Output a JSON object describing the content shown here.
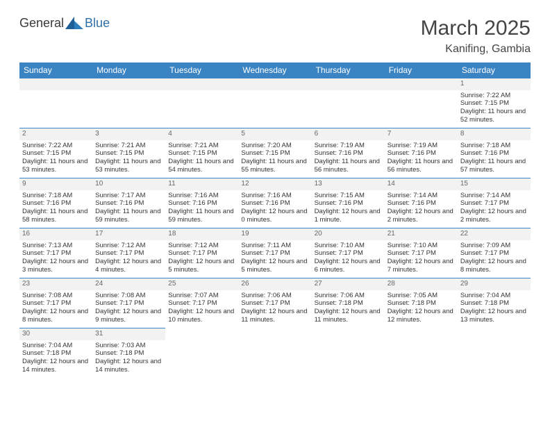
{
  "logo": {
    "general": "General",
    "blue": "Blue"
  },
  "title": "March 2025",
  "location": "Kanifing, Gambia",
  "colors": {
    "header_bg": "#3a84c4",
    "header_text": "#ffffff",
    "daynum_bg": "#f2f2f2",
    "border": "#3a84c4",
    "text": "#333333",
    "logo_blue": "#2f6fa7"
  },
  "weekdays": [
    "Sunday",
    "Monday",
    "Tuesday",
    "Wednesday",
    "Thursday",
    "Friday",
    "Saturday"
  ],
  "weeks": [
    [
      null,
      null,
      null,
      null,
      null,
      null,
      {
        "n": "1",
        "sr": "Sunrise: 7:22 AM",
        "ss": "Sunset: 7:15 PM",
        "dl": "Daylight: 11 hours and 52 minutes."
      }
    ],
    [
      {
        "n": "2",
        "sr": "Sunrise: 7:22 AM",
        "ss": "Sunset: 7:15 PM",
        "dl": "Daylight: 11 hours and 53 minutes."
      },
      {
        "n": "3",
        "sr": "Sunrise: 7:21 AM",
        "ss": "Sunset: 7:15 PM",
        "dl": "Daylight: 11 hours and 53 minutes."
      },
      {
        "n": "4",
        "sr": "Sunrise: 7:21 AM",
        "ss": "Sunset: 7:15 PM",
        "dl": "Daylight: 11 hours and 54 minutes."
      },
      {
        "n": "5",
        "sr": "Sunrise: 7:20 AM",
        "ss": "Sunset: 7:15 PM",
        "dl": "Daylight: 11 hours and 55 minutes."
      },
      {
        "n": "6",
        "sr": "Sunrise: 7:19 AM",
        "ss": "Sunset: 7:16 PM",
        "dl": "Daylight: 11 hours and 56 minutes."
      },
      {
        "n": "7",
        "sr": "Sunrise: 7:19 AM",
        "ss": "Sunset: 7:16 PM",
        "dl": "Daylight: 11 hours and 56 minutes."
      },
      {
        "n": "8",
        "sr": "Sunrise: 7:18 AM",
        "ss": "Sunset: 7:16 PM",
        "dl": "Daylight: 11 hours and 57 minutes."
      }
    ],
    [
      {
        "n": "9",
        "sr": "Sunrise: 7:18 AM",
        "ss": "Sunset: 7:16 PM",
        "dl": "Daylight: 11 hours and 58 minutes."
      },
      {
        "n": "10",
        "sr": "Sunrise: 7:17 AM",
        "ss": "Sunset: 7:16 PM",
        "dl": "Daylight: 11 hours and 59 minutes."
      },
      {
        "n": "11",
        "sr": "Sunrise: 7:16 AM",
        "ss": "Sunset: 7:16 PM",
        "dl": "Daylight: 11 hours and 59 minutes."
      },
      {
        "n": "12",
        "sr": "Sunrise: 7:16 AM",
        "ss": "Sunset: 7:16 PM",
        "dl": "Daylight: 12 hours and 0 minutes."
      },
      {
        "n": "13",
        "sr": "Sunrise: 7:15 AM",
        "ss": "Sunset: 7:16 PM",
        "dl": "Daylight: 12 hours and 1 minute."
      },
      {
        "n": "14",
        "sr": "Sunrise: 7:14 AM",
        "ss": "Sunset: 7:16 PM",
        "dl": "Daylight: 12 hours and 2 minutes."
      },
      {
        "n": "15",
        "sr": "Sunrise: 7:14 AM",
        "ss": "Sunset: 7:17 PM",
        "dl": "Daylight: 12 hours and 2 minutes."
      }
    ],
    [
      {
        "n": "16",
        "sr": "Sunrise: 7:13 AM",
        "ss": "Sunset: 7:17 PM",
        "dl": "Daylight: 12 hours and 3 minutes."
      },
      {
        "n": "17",
        "sr": "Sunrise: 7:12 AM",
        "ss": "Sunset: 7:17 PM",
        "dl": "Daylight: 12 hours and 4 minutes."
      },
      {
        "n": "18",
        "sr": "Sunrise: 7:12 AM",
        "ss": "Sunset: 7:17 PM",
        "dl": "Daylight: 12 hours and 5 minutes."
      },
      {
        "n": "19",
        "sr": "Sunrise: 7:11 AM",
        "ss": "Sunset: 7:17 PM",
        "dl": "Daylight: 12 hours and 5 minutes."
      },
      {
        "n": "20",
        "sr": "Sunrise: 7:10 AM",
        "ss": "Sunset: 7:17 PM",
        "dl": "Daylight: 12 hours and 6 minutes."
      },
      {
        "n": "21",
        "sr": "Sunrise: 7:10 AM",
        "ss": "Sunset: 7:17 PM",
        "dl": "Daylight: 12 hours and 7 minutes."
      },
      {
        "n": "22",
        "sr": "Sunrise: 7:09 AM",
        "ss": "Sunset: 7:17 PM",
        "dl": "Daylight: 12 hours and 8 minutes."
      }
    ],
    [
      {
        "n": "23",
        "sr": "Sunrise: 7:08 AM",
        "ss": "Sunset: 7:17 PM",
        "dl": "Daylight: 12 hours and 8 minutes."
      },
      {
        "n": "24",
        "sr": "Sunrise: 7:08 AM",
        "ss": "Sunset: 7:17 PM",
        "dl": "Daylight: 12 hours and 9 minutes."
      },
      {
        "n": "25",
        "sr": "Sunrise: 7:07 AM",
        "ss": "Sunset: 7:17 PM",
        "dl": "Daylight: 12 hours and 10 minutes."
      },
      {
        "n": "26",
        "sr": "Sunrise: 7:06 AM",
        "ss": "Sunset: 7:17 PM",
        "dl": "Daylight: 12 hours and 11 minutes."
      },
      {
        "n": "27",
        "sr": "Sunrise: 7:06 AM",
        "ss": "Sunset: 7:18 PM",
        "dl": "Daylight: 12 hours and 11 minutes."
      },
      {
        "n": "28",
        "sr": "Sunrise: 7:05 AM",
        "ss": "Sunset: 7:18 PM",
        "dl": "Daylight: 12 hours and 12 minutes."
      },
      {
        "n": "29",
        "sr": "Sunrise: 7:04 AM",
        "ss": "Sunset: 7:18 PM",
        "dl": "Daylight: 12 hours and 13 minutes."
      }
    ],
    [
      {
        "n": "30",
        "sr": "Sunrise: 7:04 AM",
        "ss": "Sunset: 7:18 PM",
        "dl": "Daylight: 12 hours and 14 minutes."
      },
      {
        "n": "31",
        "sr": "Sunrise: 7:03 AM",
        "ss": "Sunset: 7:18 PM",
        "dl": "Daylight: 12 hours and 14 minutes."
      },
      null,
      null,
      null,
      null,
      null
    ]
  ]
}
